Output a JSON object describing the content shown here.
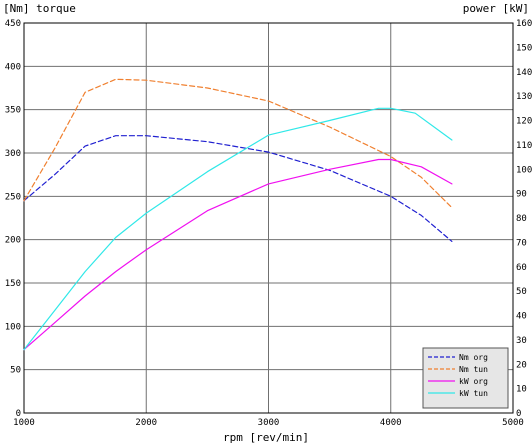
{
  "chart_data": {
    "type": "line",
    "ylabel_left": "[Nm] torque",
    "ylabel_right": "power [kW]",
    "xlabel": "rpm [rev/min]",
    "xlim": [
      1000,
      5000
    ],
    "ylim_left": [
      0,
      450
    ],
    "ylim_right": [
      0,
      160
    ],
    "x_ticks": [
      "1000",
      "2000",
      "3000",
      "4000",
      "5000"
    ],
    "y_ticks_left": [
      "0",
      "50",
      "100",
      "150",
      "200",
      "250",
      "300",
      "350",
      "400",
      "450"
    ],
    "y_ticks_right": [
      "0",
      "10",
      "20",
      "30",
      "40",
      "50",
      "60",
      "70",
      "80",
      "90",
      "100",
      "110",
      "120",
      "130",
      "140",
      "150",
      "160"
    ],
    "grid": true,
    "legend_position": "bottom-right",
    "series": [
      {
        "name": "Nm org",
        "axis": "left",
        "style": "dashed",
        "color": "#2020d0",
        "points": [
          [
            1000,
            245
          ],
          [
            1250,
            275
          ],
          [
            1500,
            308
          ],
          [
            1750,
            320
          ],
          [
            2000,
            320
          ],
          [
            2500,
            313
          ],
          [
            3000,
            301
          ],
          [
            3500,
            280
          ],
          [
            4000,
            250
          ],
          [
            4250,
            228
          ],
          [
            4500,
            198
          ]
        ]
      },
      {
        "name": "Nm tun",
        "axis": "left",
        "style": "dashed",
        "color": "#f08030",
        "points": [
          [
            1000,
            245
          ],
          [
            1250,
            305
          ],
          [
            1500,
            370
          ],
          [
            1750,
            385
          ],
          [
            2000,
            384
          ],
          [
            2500,
            375
          ],
          [
            3000,
            360
          ],
          [
            3500,
            330
          ],
          [
            4000,
            296
          ],
          [
            4250,
            272
          ],
          [
            4500,
            237
          ]
        ]
      },
      {
        "name": "kW org",
        "axis": "right",
        "style": "solid",
        "color": "#f010f0",
        "points": [
          [
            1000,
            26
          ],
          [
            1250,
            37
          ],
          [
            1500,
            48
          ],
          [
            1750,
            58
          ],
          [
            2000,
            67
          ],
          [
            2500,
            83
          ],
          [
            3000,
            94
          ],
          [
            3500,
            100
          ],
          [
            3900,
            104
          ],
          [
            4000,
            104
          ],
          [
            4250,
            101
          ],
          [
            4500,
            94
          ]
        ]
      },
      {
        "name": "kW tun",
        "axis": "right",
        "style": "solid",
        "color": "#30e8e8",
        "points": [
          [
            1000,
            26
          ],
          [
            1250,
            42
          ],
          [
            1500,
            58
          ],
          [
            1750,
            72
          ],
          [
            2000,
            82
          ],
          [
            2500,
            99
          ],
          [
            3000,
            114
          ],
          [
            3500,
            120
          ],
          [
            3900,
            125
          ],
          [
            4000,
            125
          ],
          [
            4200,
            123
          ],
          [
            4500,
            112
          ]
        ]
      }
    ]
  }
}
